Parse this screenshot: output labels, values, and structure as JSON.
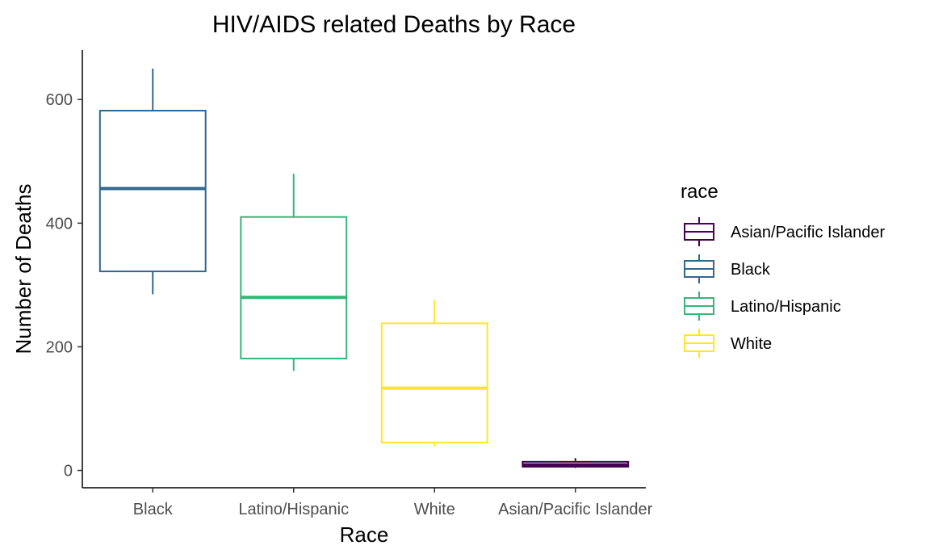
{
  "chart_data": {
    "type": "boxplot",
    "title": "HIV/AIDS related Deaths by Race",
    "xlabel": "Race",
    "ylabel": "Number of Deaths",
    "ylim": [
      -28,
      680
    ],
    "yticks": [
      0,
      200,
      400,
      600
    ],
    "categories": [
      "Black",
      "Latino/Hispanic",
      "White",
      "Asian/Pacific Islander"
    ],
    "boxes": [
      {
        "category": "Black",
        "min": 285,
        "q1": 322,
        "median": 456,
        "q3": 582,
        "max": 650,
        "color": "#31688e"
      },
      {
        "category": "Latino/Hispanic",
        "min": 161,
        "q1": 181,
        "median": 280,
        "q3": 410,
        "max": 480,
        "color": "#35b779"
      },
      {
        "category": "White",
        "min": 39,
        "q1": 45,
        "median": 133,
        "q3": 238,
        "max": 276,
        "color": "#fde725"
      },
      {
        "category": "Asian/Pacific Islander",
        "min": 4,
        "q1": 6,
        "median": 9,
        "q3": 14,
        "max": 20,
        "color": "#440154"
      }
    ],
    "legend": {
      "title": "race",
      "placement": "right",
      "entries": [
        {
          "label": "Asian/Pacific Islander",
          "color": "#440154"
        },
        {
          "label": "Black",
          "color": "#31688e"
        },
        {
          "label": "Latino/Hispanic",
          "color": "#35b779"
        },
        {
          "label": "White",
          "color": "#fde725"
        }
      ]
    },
    "grid": false
  }
}
